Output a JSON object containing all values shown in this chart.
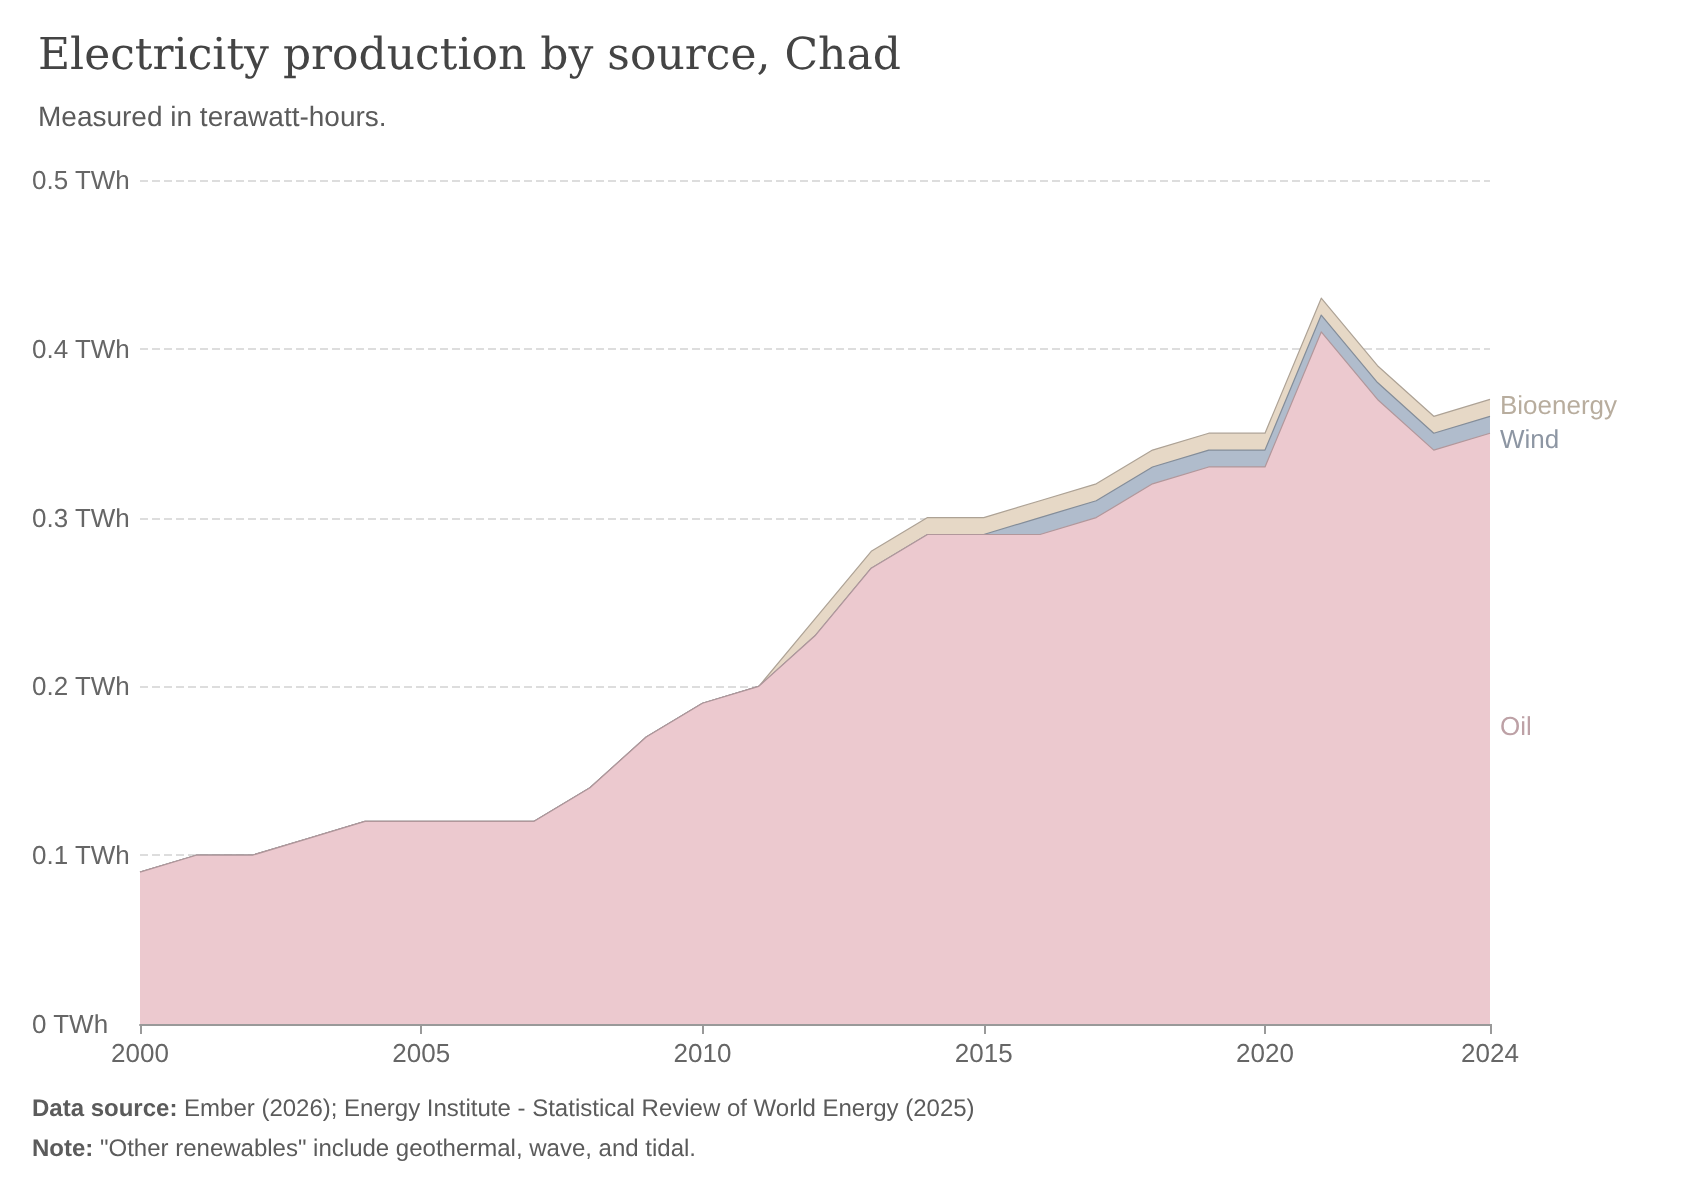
{
  "chart_data": {
    "type": "area",
    "title": "Electricity production by source, Chad",
    "subtitle": "Measured in terawatt-hours.",
    "stacked": true,
    "x": [
      2000,
      2001,
      2002,
      2003,
      2004,
      2005,
      2006,
      2007,
      2008,
      2009,
      2010,
      2011,
      2012,
      2013,
      2014,
      2015,
      2016,
      2017,
      2018,
      2019,
      2020,
      2021,
      2022,
      2023,
      2024
    ],
    "series": [
      {
        "name": "Oil",
        "color": "#ecc9cf",
        "values": [
          0.09,
          0.1,
          0.1,
          0.11,
          0.12,
          0.12,
          0.12,
          0.12,
          0.14,
          0.17,
          0.19,
          0.2,
          0.23,
          0.27,
          0.29,
          0.29,
          0.29,
          0.3,
          0.32,
          0.33,
          0.33,
          0.41,
          0.37,
          0.34,
          0.35
        ]
      },
      {
        "name": "Wind",
        "color": "#b0bccc",
        "values": [
          0,
          0,
          0,
          0,
          0,
          0,
          0,
          0,
          0,
          0,
          0,
          0,
          0,
          0,
          0,
          0,
          0.01,
          0.01,
          0.01,
          0.01,
          0.01,
          0.01,
          0.01,
          0.01,
          0.01
        ]
      },
      {
        "name": "Bioenergy",
        "color": "#e6d8c6",
        "values": [
          0,
          0,
          0,
          0,
          0,
          0,
          0,
          0,
          0,
          0,
          0,
          0,
          0.01,
          0.01,
          0.01,
          0.01,
          0.01,
          0.01,
          0.01,
          0.01,
          0.01,
          0.01,
          0.01,
          0.01,
          0.01
        ]
      }
    ],
    "xlim": [
      2000,
      2024
    ],
    "xticks": [
      2000,
      2005,
      2010,
      2015,
      2020,
      2024
    ],
    "ylim": [
      0,
      0.5
    ],
    "yticks": [
      {
        "value": 0,
        "label": "0 TWh"
      },
      {
        "value": 0.1,
        "label": "0.1 TWh"
      },
      {
        "value": 0.2,
        "label": "0.2 TWh"
      },
      {
        "value": 0.3,
        "label": "0.3 TWh"
      },
      {
        "value": 0.4,
        "label": "0.4 TWh"
      },
      {
        "value": 0.5,
        "label": "0.5 TWh"
      }
    ],
    "grid": "y",
    "annotations": [
      "Data source: Ember (2026); Energy Institute - Statistical Review of World Energy (2025)",
      "Note: \"Other renewables\" include geothermal, wave, and tidal."
    ]
  }
}
